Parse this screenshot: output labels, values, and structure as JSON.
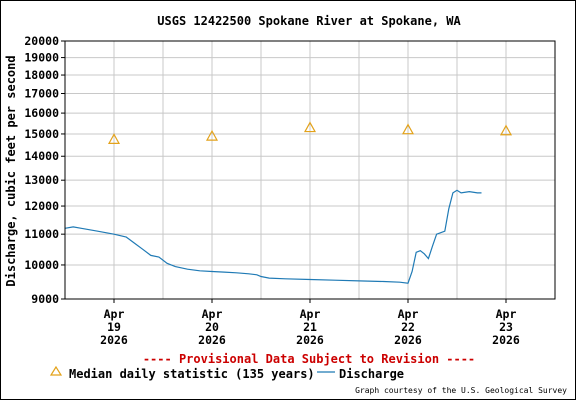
{
  "chart_data": {
    "type": "line",
    "title": "USGS 12422500 Spokane River at Spokane, WA",
    "ylabel": "Discharge, cubic feet per second",
    "y_scale": "log",
    "ylim": [
      9000,
      20000
    ],
    "y_ticks": [
      {
        "value": 9000,
        "label": "9000"
      },
      {
        "value": 10000,
        "label": "10000"
      },
      {
        "value": 11000,
        "label": "11000"
      },
      {
        "value": 12000,
        "label": "12000"
      },
      {
        "value": 13000,
        "label": "13000"
      },
      {
        "value": 14000,
        "label": "14000"
      },
      {
        "value": 15000,
        "label": "15000"
      },
      {
        "value": 16000,
        "label": "16000"
      },
      {
        "value": 17000,
        "label": "17000"
      },
      {
        "value": 18000,
        "label": "18000"
      },
      {
        "value": 19000,
        "label": "19000"
      },
      {
        "value": 20000,
        "label": "20000"
      }
    ],
    "xlim": [
      "2026-04-18 12:00",
      "2026-04-23 12:00"
    ],
    "x_ticks": [
      {
        "value": "2026-04-19",
        "lines": [
          "Apr",
          "19",
          "2026"
        ]
      },
      {
        "value": "2026-04-20",
        "lines": [
          "Apr",
          "20",
          "2026"
        ]
      },
      {
        "value": "2026-04-21",
        "lines": [
          "Apr",
          "21",
          "2026"
        ]
      },
      {
        "value": "2026-04-22",
        "lines": [
          "Apr",
          "22",
          "2026"
        ]
      },
      {
        "value": "2026-04-23",
        "lines": [
          "Apr",
          "23",
          "2026"
        ]
      }
    ],
    "grid": true,
    "series": [
      {
        "name": "Median daily statistic (135 years)",
        "color": "#e3a21a",
        "marker": "triangle",
        "points": [
          {
            "x": "2026-04-19",
            "y": 14750
          },
          {
            "x": "2026-04-20",
            "y": 14900
          },
          {
            "x": "2026-04-21",
            "y": 15300
          },
          {
            "x": "2026-04-22",
            "y": 15200
          },
          {
            "x": "2026-04-23",
            "y": 15150
          }
        ]
      },
      {
        "name": "Discharge",
        "color": "#1f7ab5",
        "marker": "line",
        "points": [
          {
            "x": "2026-04-18 12:00",
            "y": 11200
          },
          {
            "x": "2026-04-18 14:00",
            "y": 11250
          },
          {
            "x": "2026-04-18 16:00",
            "y": 11200
          },
          {
            "x": "2026-04-18 20:00",
            "y": 11100
          },
          {
            "x": "2026-04-19 00:00",
            "y": 11000
          },
          {
            "x": "2026-04-19 03:00",
            "y": 10900
          },
          {
            "x": "2026-04-19 05:00",
            "y": 10700
          },
          {
            "x": "2026-04-19 07:00",
            "y": 10500
          },
          {
            "x": "2026-04-19 09:00",
            "y": 10300
          },
          {
            "x": "2026-04-19 11:00",
            "y": 10250
          },
          {
            "x": "2026-04-19 13:00",
            "y": 10050
          },
          {
            "x": "2026-04-19 15:00",
            "y": 9950
          },
          {
            "x": "2026-04-19 18:00",
            "y": 9870
          },
          {
            "x": "2026-04-19 21:00",
            "y": 9820
          },
          {
            "x": "2026-04-20 00:00",
            "y": 9800
          },
          {
            "x": "2026-04-20 03:00",
            "y": 9780
          },
          {
            "x": "2026-04-20 06:00",
            "y": 9760
          },
          {
            "x": "2026-04-20 09:00",
            "y": 9730
          },
          {
            "x": "2026-04-20 11:00",
            "y": 9700
          },
          {
            "x": "2026-04-20 12:00",
            "y": 9650
          },
          {
            "x": "2026-04-20 14:00",
            "y": 9600
          },
          {
            "x": "2026-04-20 18:00",
            "y": 9580
          },
          {
            "x": "2026-04-21 00:00",
            "y": 9560
          },
          {
            "x": "2026-04-21 06:00",
            "y": 9540
          },
          {
            "x": "2026-04-21 12:00",
            "y": 9520
          },
          {
            "x": "2026-04-21 18:00",
            "y": 9500
          },
          {
            "x": "2026-04-21 22:00",
            "y": 9480
          },
          {
            "x": "2026-04-22 00:00",
            "y": 9450
          },
          {
            "x": "2026-04-22 01:00",
            "y": 9800
          },
          {
            "x": "2026-04-22 02:00",
            "y": 10400
          },
          {
            "x": "2026-04-22 03:00",
            "y": 10450
          },
          {
            "x": "2026-04-22 04:00",
            "y": 10350
          },
          {
            "x": "2026-04-22 05:00",
            "y": 10200
          },
          {
            "x": "2026-04-22 06:00",
            "y": 10600
          },
          {
            "x": "2026-04-22 07:00",
            "y": 11000
          },
          {
            "x": "2026-04-22 09:00",
            "y": 11100
          },
          {
            "x": "2026-04-22 10:00",
            "y": 11900
          },
          {
            "x": "2026-04-22 11:00",
            "y": 12500
          },
          {
            "x": "2026-04-22 12:00",
            "y": 12600
          },
          {
            "x": "2026-04-22 13:00",
            "y": 12500
          },
          {
            "x": "2026-04-22 15:00",
            "y": 12550
          },
          {
            "x": "2026-04-22 17:00",
            "y": 12500
          },
          {
            "x": "2026-04-22 18:00",
            "y": 12500
          }
        ]
      }
    ],
    "provisional_note": "---- Provisional Data Subject to Revision ----",
    "legend": {
      "placement": "bottom",
      "median_label": "Median daily statistic (135 years)",
      "discharge_label": "Discharge"
    },
    "credit": "Graph courtesy of the U.S. Geological Survey"
  }
}
